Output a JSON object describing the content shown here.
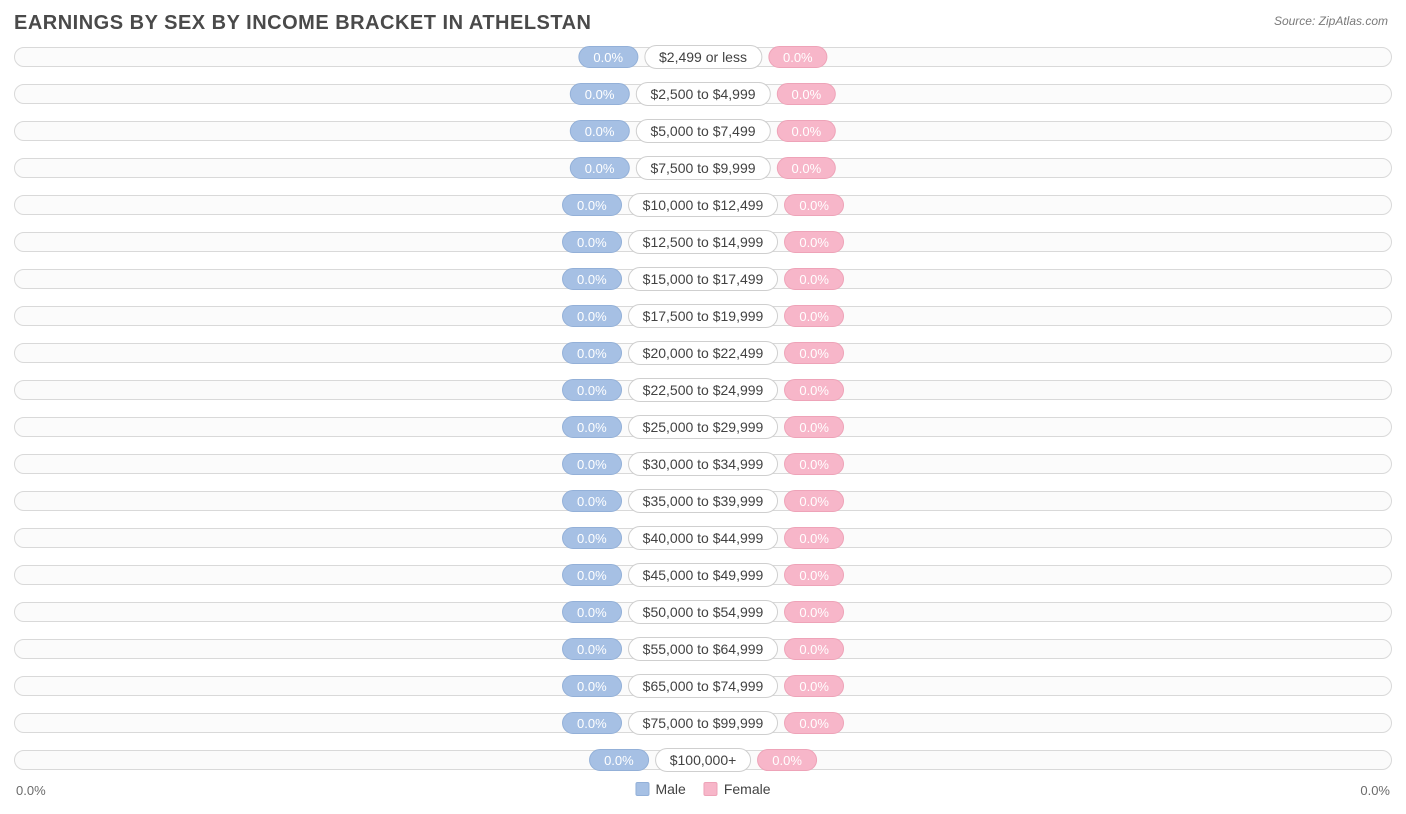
{
  "title": "EARNINGS BY SEX BY INCOME BRACKET IN ATHELSTAN",
  "source": "Source: ZipAtlas.com",
  "colors": {
    "male_fill": "#a6c0e4",
    "male_border": "#93b0d8",
    "female_fill": "#f7b6c9",
    "female_border": "#eea3b8",
    "track_border": "#d9d9d9",
    "track_bg": "#fbfbfb",
    "label_border": "#cfcfcf",
    "text_title": "#4a4a4a",
    "text_label": "#424242",
    "text_axis": "#6b6b6b",
    "background": "#ffffff"
  },
  "chart": {
    "type": "diverging-bar",
    "male_value_text": "0.0%",
    "female_value_text": "0.0%",
    "brackets": [
      {
        "label": "$2,499 or less",
        "male": 0.0,
        "female": 0.0
      },
      {
        "label": "$2,500 to $4,999",
        "male": 0.0,
        "female": 0.0
      },
      {
        "label": "$5,000 to $7,499",
        "male": 0.0,
        "female": 0.0
      },
      {
        "label": "$7,500 to $9,999",
        "male": 0.0,
        "female": 0.0
      },
      {
        "label": "$10,000 to $12,499",
        "male": 0.0,
        "female": 0.0
      },
      {
        "label": "$12,500 to $14,999",
        "male": 0.0,
        "female": 0.0
      },
      {
        "label": "$15,000 to $17,499",
        "male": 0.0,
        "female": 0.0
      },
      {
        "label": "$17,500 to $19,999",
        "male": 0.0,
        "female": 0.0
      },
      {
        "label": "$20,000 to $22,499",
        "male": 0.0,
        "female": 0.0
      },
      {
        "label": "$22,500 to $24,999",
        "male": 0.0,
        "female": 0.0
      },
      {
        "label": "$25,000 to $29,999",
        "male": 0.0,
        "female": 0.0
      },
      {
        "label": "$30,000 to $34,999",
        "male": 0.0,
        "female": 0.0
      },
      {
        "label": "$35,000 to $39,999",
        "male": 0.0,
        "female": 0.0
      },
      {
        "label": "$40,000 to $44,999",
        "male": 0.0,
        "female": 0.0
      },
      {
        "label": "$45,000 to $49,999",
        "male": 0.0,
        "female": 0.0
      },
      {
        "label": "$50,000 to $54,999",
        "male": 0.0,
        "female": 0.0
      },
      {
        "label": "$55,000 to $64,999",
        "male": 0.0,
        "female": 0.0
      },
      {
        "label": "$65,000 to $74,999",
        "male": 0.0,
        "female": 0.0
      },
      {
        "label": "$75,000 to $99,999",
        "male": 0.0,
        "female": 0.0
      },
      {
        "label": "$100,000+",
        "male": 0.0,
        "female": 0.0
      }
    ]
  },
  "axis": {
    "left": "0.0%",
    "right": "0.0%"
  },
  "legend": {
    "male": "Male",
    "female": "Female"
  },
  "typography": {
    "title_fontsize": 20,
    "label_fontsize": 14,
    "value_fontsize": 13,
    "axis_fontsize": 13
  }
}
